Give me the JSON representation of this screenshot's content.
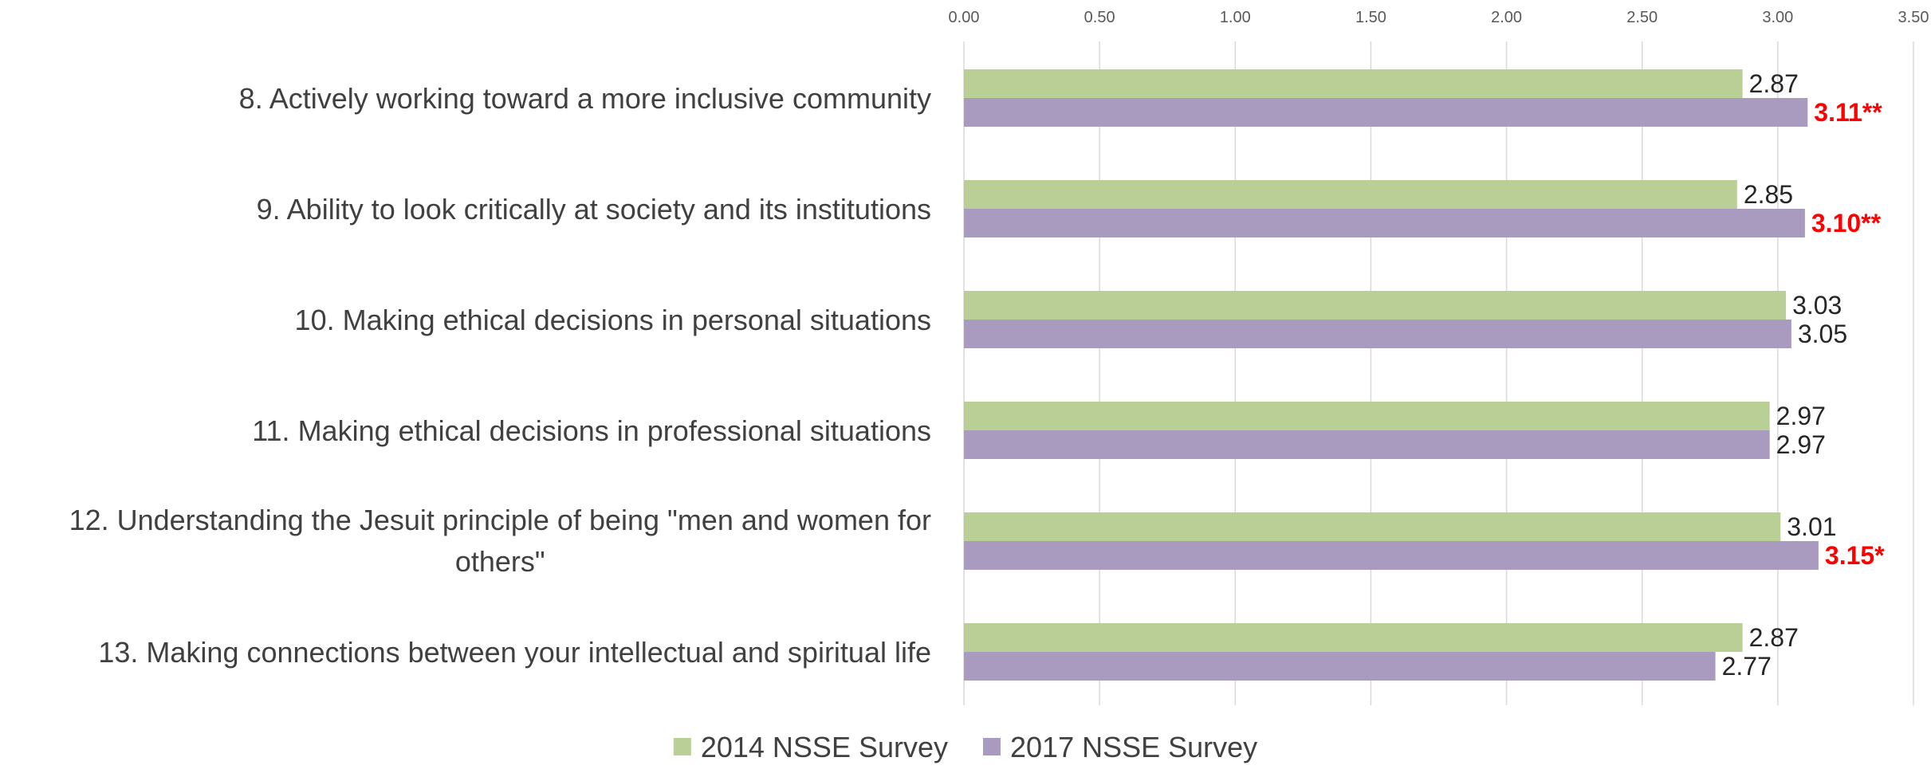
{
  "chart_data": {
    "type": "bar",
    "orientation": "horizontal",
    "categories": [
      "8. Actively working toward a more inclusive community",
      "9. Ability to look critically at society and its institutions",
      "10. Making ethical decisions in personal situations",
      "11. Making ethical decisions in professional situations",
      "12. Understanding the Jesuit principle of being \"men and women for others\"",
      "13. Making connections between your intellectual and spiritual life"
    ],
    "series": [
      {
        "name": "2014 NSSE Survey",
        "color": "#b9cf96",
        "values": [
          2.87,
          2.85,
          3.03,
          2.97,
          3.01,
          2.87
        ],
        "labels": [
          "2.87",
          "2.85",
          "3.03",
          "2.97",
          "3.01",
          "2.87"
        ],
        "significant": [
          false,
          false,
          false,
          false,
          false,
          false
        ]
      },
      {
        "name": "2017 NSSE Survey",
        "color": "#a99bc0",
        "values": [
          3.11,
          3.1,
          3.05,
          2.97,
          3.15,
          2.77
        ],
        "labels": [
          "3.11**",
          "3.10**",
          "3.05",
          "2.97",
          "3.15*",
          "2.77"
        ],
        "significant": [
          true,
          true,
          false,
          false,
          true,
          false
        ]
      }
    ],
    "xlim": [
      0,
      3.5
    ],
    "xticks": [
      "0.00",
      "0.50",
      "1.00",
      "1.50",
      "2.00",
      "2.50",
      "3.00",
      "3.50"
    ],
    "xtick_values": [
      0,
      0.5,
      1,
      1.5,
      2,
      2.5,
      3,
      3.5
    ],
    "xaxis_position": "top",
    "grid": true,
    "legend_position": "bottom-center",
    "significant_label_color": "#ff0000",
    "title": "",
    "xlabel": "",
    "ylabel": ""
  }
}
